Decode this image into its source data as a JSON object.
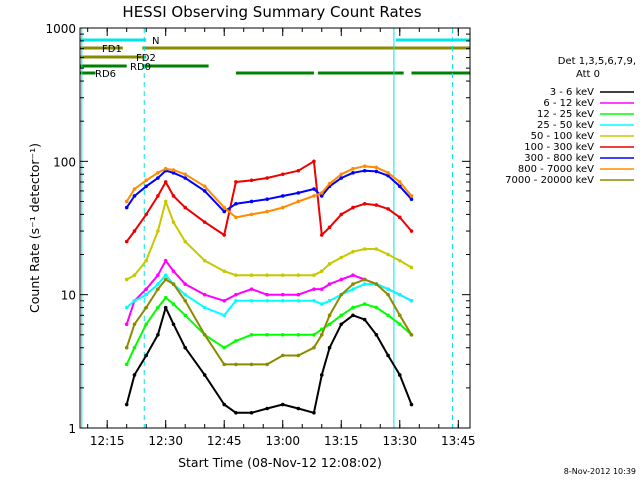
{
  "chart_data": {
    "type": "line",
    "title": "HESSI Observing Summary Count Rates",
    "xlabel": "Start Time (08-Nov-12 12:08:02)",
    "ylabel": "Count Rate (s⁻¹ detector⁻¹)",
    "x_scale": "time",
    "x_ticks": [
      "12:15",
      "12:30",
      "12:45",
      "13:00",
      "13:15",
      "13:30",
      "13:45"
    ],
    "xlim": [
      "12:08:02",
      "13:48"
    ],
    "y_scale": "log",
    "y_ticks": [
      "1",
      "10",
      "100",
      "1000"
    ],
    "ylim": [
      1,
      1000
    ],
    "legend_header": [
      "Det 1,3,5,6,7,9,",
      "Att 0"
    ],
    "legend_position": "right",
    "timestamp": "8-Nov-2012 10:39",
    "flags": [
      {
        "label": "N",
        "color": "#00e5e5",
        "intervals": [
          [
            "12:08:02",
            "12:25"
          ],
          [
            "13:29",
            "13:48"
          ]
        ]
      },
      {
        "label": "FD1",
        "color": "#8b8b00",
        "intervals": [
          [
            "12:08:02",
            "12:19"
          ],
          [
            "12:24",
            "13:48"
          ]
        ]
      },
      {
        "label": "FD2",
        "color": "#8b8b00",
        "intervals": [
          [
            "12:08:02",
            "12:25"
          ]
        ]
      },
      {
        "label": "RD0",
        "color": "#008000",
        "intervals": [
          [
            "12:08:02",
            "12:20"
          ],
          [
            "12:24",
            "12:41"
          ]
        ]
      },
      {
        "label": "RD6",
        "color": "#008000",
        "intervals": [
          [
            "12:08:02",
            "12:12"
          ],
          [
            "12:48",
            "13:08"
          ],
          [
            "13:09",
            "13:31"
          ],
          [
            "13:33",
            "13:48"
          ]
        ]
      }
    ],
    "vlines": [
      {
        "time": "12:08:30",
        "color": "#00e5e5",
        "style": "solid"
      },
      {
        "time": "12:24:30",
        "color": "#00e5e5",
        "style": "dashed"
      },
      {
        "time": "13:28:30",
        "color": "#00e5e5",
        "style": "solid"
      },
      {
        "time": "13:43:30",
        "color": "#00e5e5",
        "style": "dashed"
      }
    ],
    "x": [
      "12:20",
      "12:22",
      "12:25",
      "12:28",
      "12:30",
      "12:32",
      "12:35",
      "12:40",
      "12:45",
      "12:48",
      "12:52",
      "12:56",
      "13:00",
      "13:04",
      "13:08",
      "13:10",
      "13:12",
      "13:15",
      "13:18",
      "13:21",
      "13:24",
      "13:27",
      "13:30",
      "13:33"
    ],
    "series": [
      {
        "name": "3 - 6 keV",
        "color": "#000000",
        "values": [
          1.5,
          2.5,
          3.5,
          5,
          8,
          6,
          4,
          2.5,
          1.5,
          1.3,
          1.3,
          1.4,
          1.5,
          1.4,
          1.3,
          2.5,
          4,
          6,
          7,
          6.5,
          5,
          3.5,
          2.5,
          1.5
        ]
      },
      {
        "name": "6 - 12 keV",
        "color": "#ff00ff",
        "values": [
          6,
          9,
          11,
          14,
          18,
          15,
          12,
          10,
          9,
          10,
          11,
          10,
          10,
          10,
          11,
          11,
          12,
          13,
          14,
          13,
          12,
          11,
          10,
          9
        ]
      },
      {
        "name": "12 - 25 keV",
        "color": "#00ff00",
        "values": [
          3,
          4,
          6,
          8,
          9.5,
          8.5,
          7,
          5,
          4,
          4.5,
          5,
          5,
          5,
          5,
          5,
          5.5,
          6,
          7,
          8,
          8.5,
          8,
          7,
          6,
          5
        ]
      },
      {
        "name": "25 - 50 keV",
        "color": "#00ffff",
        "values": [
          8,
          9,
          10,
          12,
          14,
          12,
          10,
          8,
          7,
          9,
          9,
          9,
          9,
          9,
          9,
          8.5,
          9,
          10,
          11,
          12,
          12,
          11,
          10,
          9
        ]
      },
      {
        "name": "50 - 100 keV",
        "color": "#c8c800",
        "values": [
          13,
          14,
          18,
          30,
          50,
          35,
          25,
          18,
          15,
          14,
          14,
          14,
          14,
          14,
          14,
          15,
          17,
          19,
          21,
          22,
          22,
          20,
          18,
          16
        ]
      },
      {
        "name": "100 - 300 keV",
        "color": "#ee0000",
        "values": [
          25,
          30,
          40,
          55,
          70,
          55,
          45,
          35,
          28,
          70,
          72,
          75,
          80,
          85,
          100,
          28,
          32,
          40,
          45,
          48,
          47,
          44,
          38,
          30
        ]
      },
      {
        "name": "300 - 800 keV",
        "color": "#0000ff",
        "values": [
          45,
          55,
          65,
          75,
          85,
          82,
          75,
          60,
          42,
          48,
          50,
          52,
          55,
          58,
          62,
          55,
          65,
          75,
          82,
          85,
          84,
          78,
          65,
          52
        ]
      },
      {
        "name": "800 - 7000 keV",
        "color": "#ff8c00",
        "values": [
          50,
          62,
          72,
          82,
          88,
          86,
          80,
          65,
          45,
          38,
          40,
          42,
          45,
          50,
          55,
          58,
          68,
          80,
          88,
          92,
          90,
          82,
          70,
          55
        ]
      },
      {
        "name": "7000 - 20000 keV",
        "color": "#8b8b00",
        "values": [
          4,
          6,
          8,
          11,
          13,
          12,
          9,
          5,
          3,
          3,
          3,
          3,
          3.5,
          3.5,
          4,
          5,
          7,
          10,
          12,
          13,
          12,
          10,
          7,
          5
        ]
      }
    ]
  }
}
